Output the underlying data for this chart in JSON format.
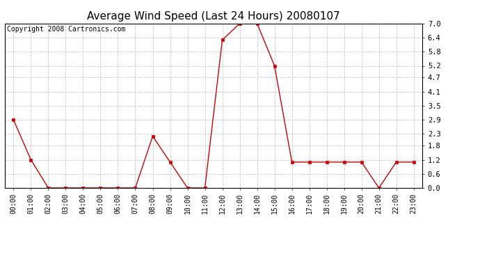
{
  "title": "Average Wind Speed (Last 24 Hours) 20080107",
  "copyright": "Copyright 2008 Cartronics.com",
  "x_labels": [
    "00:00",
    "01:00",
    "02:00",
    "03:00",
    "04:00",
    "05:00",
    "06:00",
    "07:00",
    "08:00",
    "09:00",
    "10:00",
    "11:00",
    "12:00",
    "13:00",
    "14:00",
    "15:00",
    "16:00",
    "17:00",
    "18:00",
    "19:00",
    "20:00",
    "21:00",
    "22:00",
    "23:00"
  ],
  "y_values": [
    2.9,
    1.2,
    0.0,
    0.0,
    0.0,
    0.0,
    0.0,
    0.0,
    2.2,
    1.1,
    0.0,
    0.0,
    6.3,
    7.0,
    7.0,
    5.2,
    1.1,
    1.1,
    1.1,
    1.1,
    1.1,
    0.0,
    1.1,
    1.1
  ],
  "ylim": [
    0.0,
    7.0
  ],
  "yticks": [
    0.0,
    0.6,
    1.2,
    1.8,
    2.3,
    2.9,
    3.5,
    4.1,
    4.7,
    5.2,
    5.8,
    6.4,
    7.0
  ],
  "line_color": "#cc0000",
  "marker_color": "#cc0000",
  "bg_color": "#ffffff",
  "plot_bg_color": "#ffffff",
  "grid_color": "#c8c8c8",
  "title_fontsize": 11,
  "copyright_fontsize": 7,
  "tick_fontsize": 7,
  "ytick_fontsize": 7.5
}
